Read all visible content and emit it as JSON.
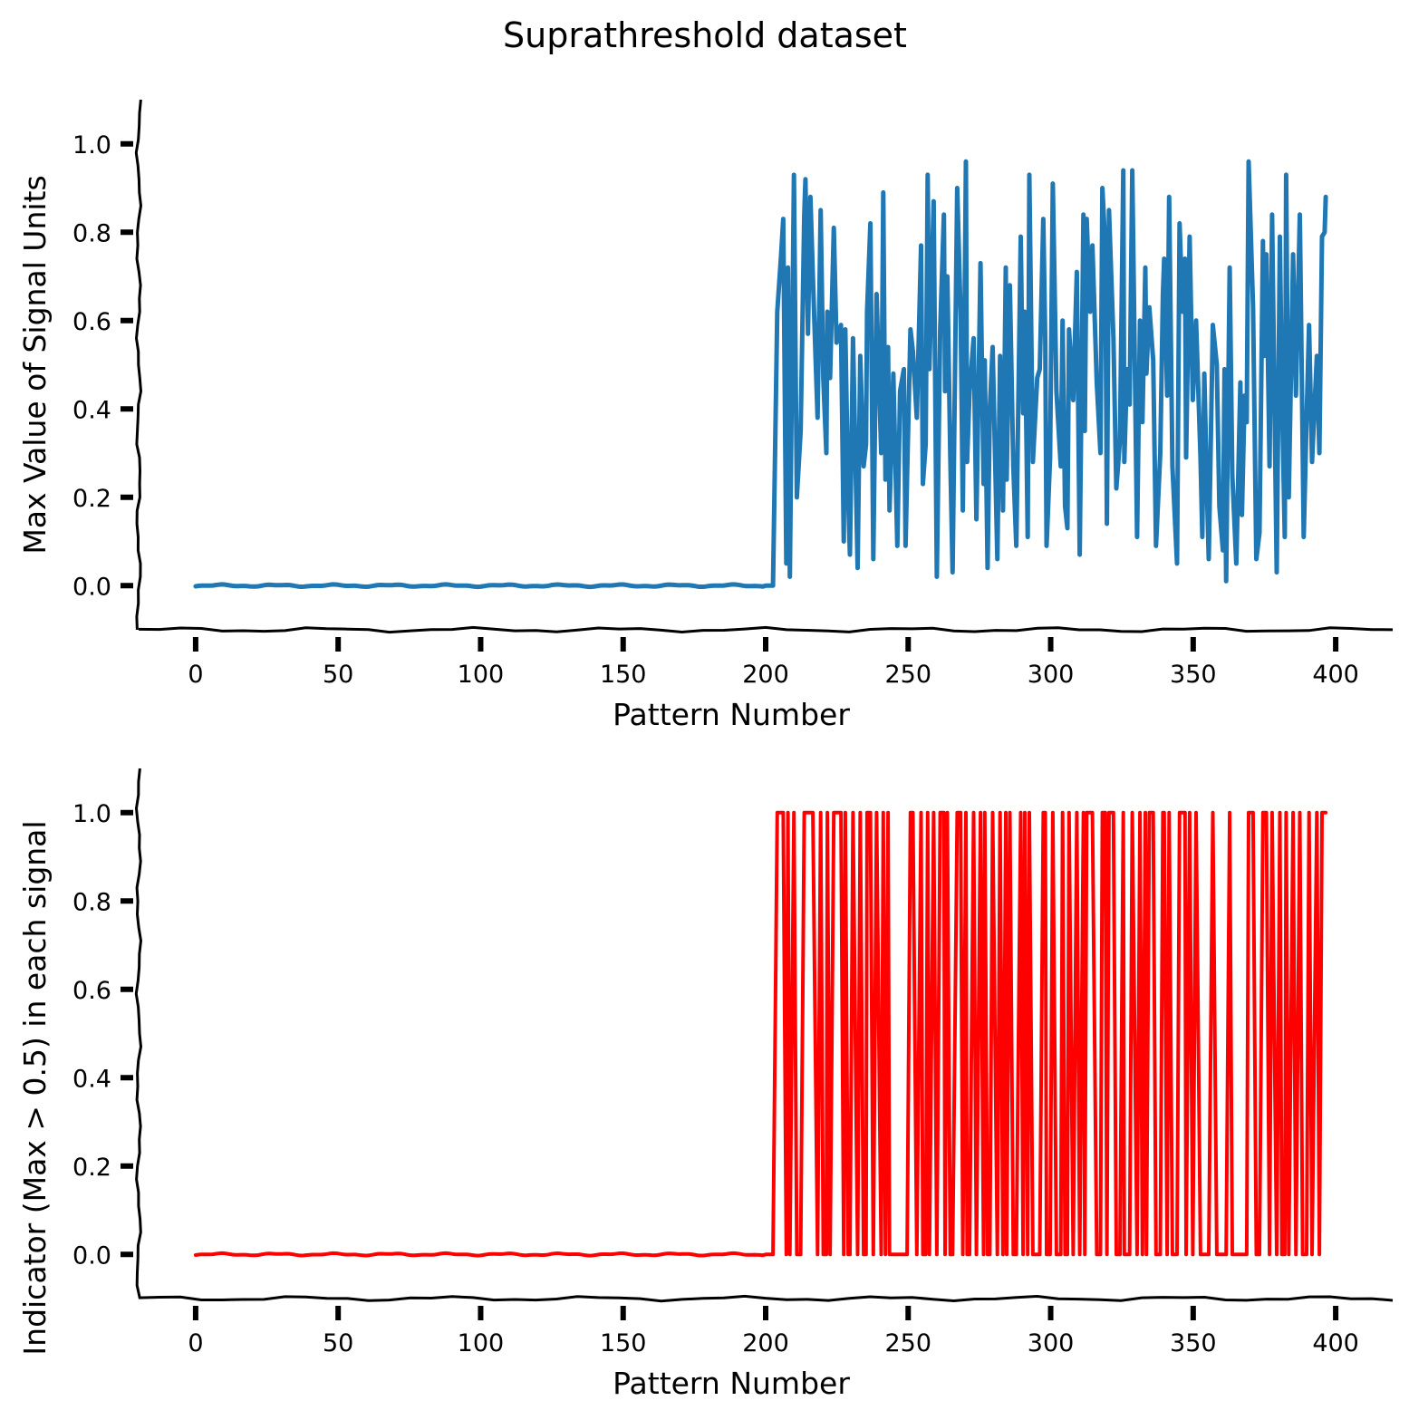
{
  "title": "Suprathreshold dataset",
  "chart_data": [
    {
      "type": "line",
      "xlabel": "Pattern Number",
      "ylabel": "Max Value of Signal Units",
      "xlim": [
        -20,
        420
      ],
      "ylim": [
        -0.1,
        1.1
      ],
      "xticks": [
        0,
        50,
        100,
        150,
        200,
        250,
        300,
        350,
        400
      ],
      "yticks": [
        "0.0",
        "0.2",
        "0.4",
        "0.6",
        "0.8",
        "1.0"
      ],
      "style": "xkcd",
      "grid": false,
      "series": [
        {
          "color": "#1f77b4",
          "x_start": 0,
          "values": [
            0.0,
            0.0,
            0.0,
            0.0,
            0.0,
            0.0,
            0.0,
            0.0,
            0.0,
            0.0,
            0.0,
            0.0,
            0.0,
            0.0,
            0.0,
            0.0,
            0.0,
            0.0,
            0.0,
            0.0,
            0.0,
            0.0,
            0.0,
            0.0,
            0.0,
            0.0,
            0.0,
            0.0,
            0.0,
            0.0,
            0.0,
            0.0,
            0.0,
            0.0,
            0.0,
            0.0,
            0.0,
            0.0,
            0.0,
            0.0,
            0.0,
            0.0,
            0.0,
            0.0,
            0.0,
            0.0,
            0.0,
            0.0,
            0.0,
            0.0,
            0.0,
            0.0,
            0.0,
            0.0,
            0.0,
            0.0,
            0.0,
            0.0,
            0.0,
            0.0,
            0.0,
            0.0,
            0.0,
            0.0,
            0.0,
            0.0,
            0.0,
            0.0,
            0.0,
            0.0,
            0.0,
            0.0,
            0.0,
            0.0,
            0.0,
            0.0,
            0.0,
            0.0,
            0.0,
            0.0,
            0.0,
            0.0,
            0.0,
            0.0,
            0.0,
            0.0,
            0.0,
            0.0,
            0.0,
            0.0,
            0.0,
            0.0,
            0.0,
            0.0,
            0.0,
            0.0,
            0.0,
            0.0,
            0.0,
            0.0,
            0.0,
            0.0,
            0.0,
            0.0,
            0.0,
            0.0,
            0.0,
            0.0,
            0.0,
            0.0,
            0.0,
            0.0,
            0.0,
            0.0,
            0.0,
            0.0,
            0.0,
            0.0,
            0.0,
            0.0,
            0.0,
            0.0,
            0.0,
            0.0,
            0.0,
            0.0,
            0.0,
            0.0,
            0.0,
            0.0,
            0.0,
            0.0,
            0.0,
            0.0,
            0.0,
            0.0,
            0.0,
            0.0,
            0.0,
            0.0,
            0.0,
            0.0,
            0.0,
            0.0,
            0.0,
            0.0,
            0.0,
            0.0,
            0.0,
            0.0,
            0.0,
            0.0,
            0.0,
            0.0,
            0.0,
            0.0,
            0.0,
            0.0,
            0.0,
            0.0,
            0.0,
            0.0,
            0.0,
            0.0,
            0.0,
            0.0,
            0.0,
            0.0,
            0.0,
            0.0,
            0.0,
            0.0,
            0.0,
            0.0,
            0.0,
            0.0,
            0.0,
            0.0,
            0.0,
            0.0,
            0.0,
            0.0,
            0.0,
            0.0,
            0.0,
            0.0,
            0.0,
            0.0,
            0.0,
            0.0,
            0.0,
            0.0,
            0.0,
            0.0,
            0.0,
            0.0,
            0.0,
            0.0,
            0.0,
            0.0,
            0.0,
            0.0,
            0.0,
            0.0,
            0.62,
            0.75,
            0.83,
            0.05,
            0.72,
            0.02,
            0.93,
            0.2,
            0.35,
            0.84,
            0.92,
            0.57,
            0.88,
            0.7,
            0.38,
            0.85,
            0.47,
            0.3,
            0.62,
            0.47,
            0.81,
            0.55,
            0.59,
            0.1,
            0.58,
            0.2,
            0.07,
            0.56,
            0.04,
            0.52,
            0.27,
            0.32,
            0.62,
            0.82,
            0.06,
            0.66,
            0.3,
            0.89,
            0.24,
            0.54,
            0.17,
            0.48,
            0.09,
            0.44,
            0.49,
            0.09,
            0.25,
            0.58,
            0.53,
            0.38,
            0.77,
            0.23,
            0.32,
            0.93,
            0.49,
            0.87,
            0.02,
            0.58,
            0.84,
            0.44,
            0.7,
            0.3,
            0.03,
            0.9,
            0.61,
            0.17,
            0.96,
            0.28,
            0.44,
            0.56,
            0.15,
            0.73,
            0.23,
            0.51,
            0.04,
            0.4,
            0.54,
            0.06,
            0.52,
            0.17,
            0.72,
            0.24,
            0.68,
            0.27,
            0.09,
            0.79,
            0.39,
            0.62,
            0.11,
            0.93,
            0.28,
            0.47,
            0.49,
            0.83,
            0.55,
            0.09,
            0.29,
            0.91,
            0.44,
            0.27,
            0.6,
            0.18,
            0.13,
            0.58,
            0.42,
            0.71,
            0.07,
            0.84,
            0.35,
            0.83,
            0.62,
            0.77,
            0.46,
            0.3,
            0.9,
            0.77,
            0.14,
            0.85,
            0.56,
            0.22,
            0.33,
            0.94,
            0.28,
            0.49,
            0.41,
            0.94,
            0.11,
            0.6,
            0.37,
            0.72,
            0.48,
            0.63,
            0.51,
            0.09,
            0.3,
            0.66,
            0.74,
            0.43,
            0.88,
            0.27,
            0.05,
            0.82,
            0.62,
            0.74,
            0.29,
            0.79,
            0.42,
            0.6,
            0.29,
            0.11,
            0.48,
            0.2,
            0.06,
            0.59,
            0.5,
            0.18,
            0.08,
            0.49,
            0.01,
            0.72,
            0.25,
            0.05,
            0.46,
            0.16,
            0.43,
            0.37,
            0.96,
            0.63,
            0.06,
            0.12,
            0.78,
            0.52,
            0.75,
            0.27,
            0.84,
            0.03,
            0.79,
            0.44,
            0.11,
            0.93,
            0.2,
            0.75,
            0.43,
            0.84,
            0.32,
            0.11,
            0.38,
            0.59,
            0.28,
            0.52,
            0.3,
            0.79,
            0.8,
            0.88
          ]
        }
      ]
    },
    {
      "type": "line",
      "xlabel": "Pattern Number",
      "ylabel": "Indicator (Max > 0.5) in each signal",
      "xlim": [
        -20,
        420
      ],
      "ylim": [
        -0.1,
        1.1
      ],
      "xticks": [
        0,
        50,
        100,
        150,
        200,
        250,
        300,
        350,
        400
      ],
      "yticks": [
        "0.0",
        "0.2",
        "0.4",
        "0.6",
        "0.8",
        "1.0"
      ],
      "style": "xkcd",
      "grid": false,
      "series": [
        {
          "color": "#ff0000",
          "derived_from_threshold": 0.5
        }
      ]
    }
  ]
}
